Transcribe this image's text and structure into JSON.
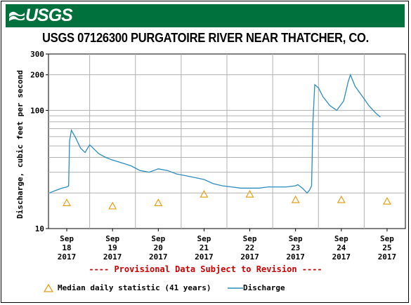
{
  "header": {
    "logo_text": "USGS",
    "title": "USGS 07126300 PURGATOIRE RIVER NEAR THATCHER, CO."
  },
  "notice": "---- Provisional Data Subject to Revision ----",
  "colors": {
    "banner": "#00703c",
    "discharge_line": "#2b8cbe",
    "median_marker": "#e6a017",
    "notice": "#cc0000",
    "grid": "#b0b0b0"
  },
  "legend": {
    "median_label": "Median daily statistic (41 years)",
    "discharge_label": "Discharge"
  },
  "chart_data": {
    "type": "line",
    "title": "USGS 07126300 PURGATOIRE RIVER NEAR THATCHER, CO.",
    "ylabel": "Discharge, cubic feet per second",
    "xlabel": "",
    "yscale": "log",
    "ylim": [
      10,
      300
    ],
    "yticks": [
      10,
      100,
      200,
      300
    ],
    "xlim": [
      17.6,
      25.4
    ],
    "grid": true,
    "x_ticks": [
      {
        "x": 18,
        "month": "Sep",
        "day": "18",
        "year": "2017"
      },
      {
        "x": 19,
        "month": "Sep",
        "day": "19",
        "year": "2017"
      },
      {
        "x": 20,
        "month": "Sep",
        "day": "20",
        "year": "2017"
      },
      {
        "x": 21,
        "month": "Sep",
        "day": "21",
        "year": "2017"
      },
      {
        "x": 22,
        "month": "Sep",
        "day": "22",
        "year": "2017"
      },
      {
        "x": 23,
        "month": "Sep",
        "day": "23",
        "year": "2017"
      },
      {
        "x": 24,
        "month": "Sep",
        "day": "24",
        "year": "2017"
      },
      {
        "x": 25,
        "month": "Sep",
        "day": "25",
        "year": "2017"
      }
    ],
    "series": [
      {
        "name": "Discharge",
        "style": "line",
        "x": [
          17.62,
          17.75,
          17.9,
          18.0,
          18.04,
          18.06,
          18.1,
          18.2,
          18.3,
          18.4,
          18.5,
          18.55,
          18.7,
          18.85,
          19.0,
          19.2,
          19.4,
          19.6,
          19.8,
          20.0,
          20.2,
          20.4,
          20.6,
          20.8,
          21.0,
          21.2,
          21.4,
          21.6,
          21.8,
          22.0,
          22.2,
          22.4,
          22.6,
          22.8,
          23.0,
          23.05,
          23.15,
          23.25,
          23.3,
          23.35,
          23.38,
          23.42,
          23.5,
          23.6,
          23.75,
          23.9,
          24.05,
          24.15,
          24.2,
          24.3,
          24.5,
          24.6,
          24.75,
          24.85
        ],
        "y": [
          20,
          21,
          22,
          22.5,
          23,
          55,
          68,
          58,
          48,
          44,
          51,
          49,
          43,
          40,
          38,
          36,
          34,
          31,
          30,
          32,
          31,
          29,
          28,
          27,
          26,
          24,
          23,
          22.5,
          22,
          22,
          22,
          22.5,
          22.5,
          22.5,
          23,
          23.5,
          22,
          20,
          21,
          23,
          80,
          165,
          155,
          130,
          110,
          100,
          120,
          175,
          200,
          160,
          125,
          110,
          95,
          88
        ]
      },
      {
        "name": "Median daily statistic (41 years)",
        "style": "marker",
        "x": [
          18,
          19,
          20,
          21,
          22,
          23,
          24,
          25
        ],
        "y": [
          16.5,
          15.5,
          16.5,
          19.5,
          19.5,
          17.5,
          17.5,
          17
        ]
      }
    ]
  }
}
